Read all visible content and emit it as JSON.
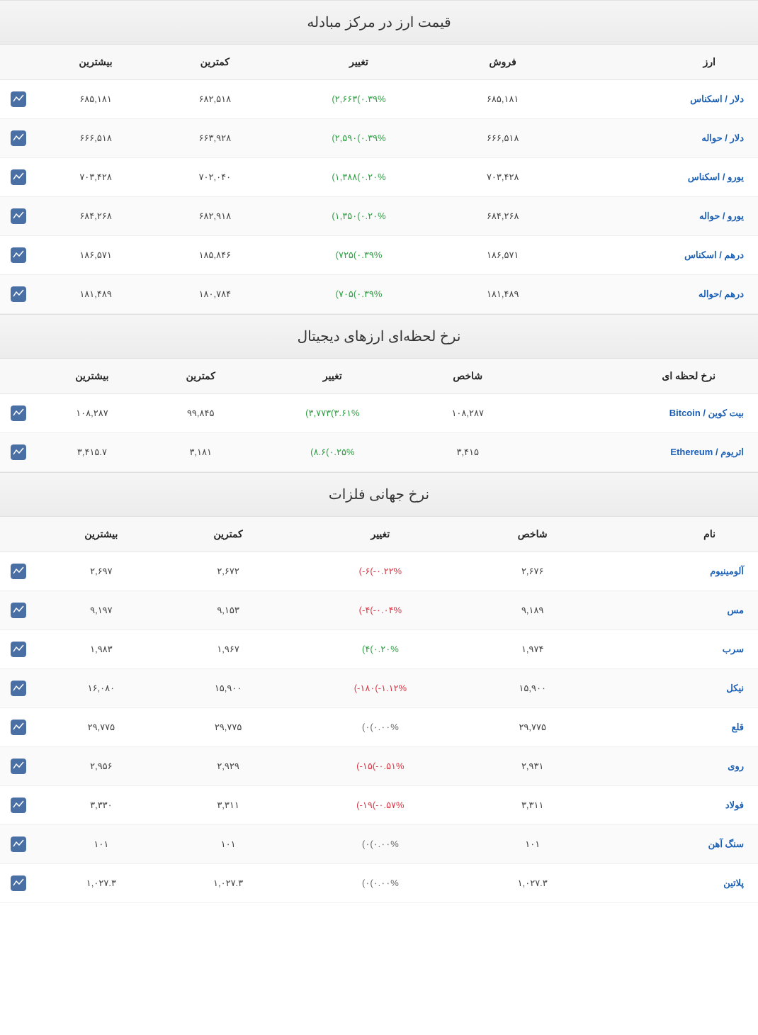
{
  "sections": [
    {
      "title": "قیمت ارز در مرکز مبادله",
      "headers": {
        "name": "ارز",
        "sale": "فروش",
        "change": "تغییر",
        "min": "کمترین",
        "max": "بیشترین"
      },
      "rows": [
        {
          "name": "دلار / اسکناس",
          "sale": "۶۸۵,۱۸۱",
          "change_val": "۲,۶۶۳",
          "change_pct": "۰.۳۹%",
          "dir": "pos",
          "min": "۶۸۲,۵۱۸",
          "max": "۶۸۵,۱۸۱"
        },
        {
          "name": "دلار / حواله",
          "sale": "۶۶۶,۵۱۸",
          "change_val": "۲,۵۹۰",
          "change_pct": "۰.۳۹%",
          "dir": "pos",
          "min": "۶۶۳,۹۲۸",
          "max": "۶۶۶,۵۱۸"
        },
        {
          "name": "یورو / اسکناس",
          "sale": "۷۰۳,۴۲۸",
          "change_val": "۱,۳۸۸",
          "change_pct": "۰.۲۰%",
          "dir": "pos",
          "min": "۷۰۲,۰۴۰",
          "max": "۷۰۳,۴۲۸"
        },
        {
          "name": "یورو / حواله",
          "sale": "۶۸۴,۲۶۸",
          "change_val": "۱,۳۵۰",
          "change_pct": "۰.۲۰%",
          "dir": "pos",
          "min": "۶۸۲,۹۱۸",
          "max": "۶۸۴,۲۶۸"
        },
        {
          "name": "درهم / اسکناس",
          "sale": "۱۸۶,۵۷۱",
          "change_val": "۷۲۵",
          "change_pct": "۰.۳۹%",
          "dir": "pos",
          "min": "۱۸۵,۸۴۶",
          "max": "۱۸۶,۵۷۱"
        },
        {
          "name": "درهم /حواله",
          "sale": "۱۸۱,۴۸۹",
          "change_val": "۷۰۵",
          "change_pct": "۰.۳۹%",
          "dir": "pos",
          "min": "۱۸۰,۷۸۴",
          "max": "۱۸۱,۴۸۹"
        }
      ]
    },
    {
      "title": "نرخ لحظه‌ای ارزهای دیجیتال",
      "headers": {
        "name": "نرخ لحظه ای",
        "sale": "شاخص",
        "change": "تغییر",
        "min": "کمترین",
        "max": "بیشترین"
      },
      "rows": [
        {
          "name": "بیت کوین / Bitcoin",
          "sale": "۱۰۸,۲۸۷",
          "change_val": "۳,۷۷۳",
          "change_pct": "۳.۶۱%",
          "dir": "pos",
          "min": "۹۹,۸۴۵",
          "max": "۱۰۸,۲۸۷"
        },
        {
          "name": "اتریوم / Ethereum",
          "sale": "۳,۴۱۵",
          "change_val": "۸.۶",
          "change_pct": "۰.۲۵%",
          "dir": "pos",
          "min": "۳,۱۸۱",
          "max": "۳,۴۱۵.۷"
        }
      ]
    },
    {
      "title": "نرخ جهانی فلزات",
      "headers": {
        "name": "نام",
        "sale": "شاخص",
        "change": "تغییر",
        "min": "کمترین",
        "max": "بیشترین"
      },
      "rows": [
        {
          "name": "آلومینیوم",
          "sale": "۲,۶۷۶",
          "change_val": "-۶",
          "change_pct": "-۰.۲۲%",
          "dir": "neg",
          "min": "۲,۶۷۲",
          "max": "۲,۶۹۷"
        },
        {
          "name": "مس",
          "sale": "۹,۱۸۹",
          "change_val": "-۴",
          "change_pct": "-۰.۰۴%",
          "dir": "neg",
          "min": "۹,۱۵۳",
          "max": "۹,۱۹۷"
        },
        {
          "name": "سرب",
          "sale": "۱,۹۷۴",
          "change_val": "۴",
          "change_pct": "۰.۲۰%",
          "dir": "pos",
          "min": "۱,۹۶۷",
          "max": "۱,۹۸۳"
        },
        {
          "name": "نیکل",
          "sale": "۱۵,۹۰۰",
          "change_val": "-۱۸۰",
          "change_pct": "-۱.۱۲%",
          "dir": "neg",
          "min": "۱۵,۹۰۰",
          "max": "۱۶,۰۸۰"
        },
        {
          "name": "قلع",
          "sale": "۲۹,۷۷۵",
          "change_val": "۰",
          "change_pct": "۰.۰۰%",
          "dir": "zero",
          "min": "۲۹,۷۷۵",
          "max": "۲۹,۷۷۵"
        },
        {
          "name": "روی",
          "sale": "۲,۹۳۱",
          "change_val": "-۱۵",
          "change_pct": "-۰.۵۱%",
          "dir": "neg",
          "min": "۲,۹۲۹",
          "max": "۲,۹۵۶"
        },
        {
          "name": "فولاد",
          "sale": "۳,۳۱۱",
          "change_val": "-۱۹",
          "change_pct": "-۰.۵۷%",
          "dir": "neg",
          "min": "۳,۳۱۱",
          "max": "۳,۳۳۰"
        },
        {
          "name": "سنگ آهن",
          "sale": "۱۰۱",
          "change_val": "۰",
          "change_pct": "۰.۰۰%",
          "dir": "zero",
          "min": "۱۰۱",
          "max": "۱۰۱"
        },
        {
          "name": "پلاتین",
          "sale": "۱,۰۲۷.۳",
          "change_val": "۰",
          "change_pct": "۰.۰۰%",
          "dir": "zero",
          "min": "۱,۰۲۷.۳",
          "max": "۱,۰۲۷.۳"
        }
      ]
    }
  ],
  "colors": {
    "pos": "#2ea043",
    "neg": "#d73a49",
    "zero": "#666666",
    "link": "#1a5fb4",
    "icon_bg": "#4a6fa5"
  }
}
